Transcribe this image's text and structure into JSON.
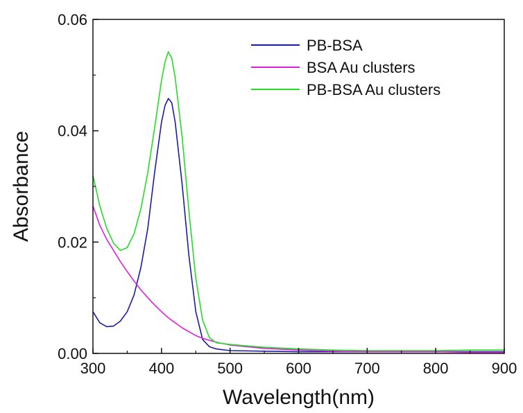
{
  "chart_data": {
    "type": "line",
    "xlabel": "Wavelength(nm)",
    "ylabel": "Absorbance",
    "xlim": [
      300,
      900
    ],
    "ylim": [
      0.0,
      0.06
    ],
    "x_ticks": [
      300,
      400,
      500,
      600,
      700,
      800,
      900
    ],
    "x_tick_labels": [
      "300",
      "400",
      "500",
      "600",
      "700",
      "800",
      "900"
    ],
    "y_ticks": [
      0.0,
      0.02,
      0.04,
      0.06
    ],
    "y_tick_labels": [
      "0.00",
      "0.02",
      "0.04",
      "0.06"
    ],
    "grid": false,
    "legend_position": "top-right",
    "series": [
      {
        "name": "PB-BSA",
        "color": "#1a1aa6",
        "x": [
          300,
          310,
          320,
          330,
          340,
          350,
          360,
          370,
          380,
          390,
          400,
          405,
          410,
          415,
          420,
          430,
          440,
          450,
          460,
          470,
          480,
          500,
          550,
          600,
          650,
          700,
          750,
          800,
          850,
          900
        ],
        "y": [
          0.0075,
          0.0055,
          0.0048,
          0.0049,
          0.0058,
          0.0075,
          0.0105,
          0.0155,
          0.0225,
          0.0325,
          0.0415,
          0.0445,
          0.0458,
          0.045,
          0.0415,
          0.0305,
          0.0175,
          0.0075,
          0.0025,
          0.0012,
          0.0008,
          0.0005,
          0.0004,
          0.0003,
          0.0003,
          0.0003,
          0.0003,
          0.0003,
          0.0003,
          0.0003
        ]
      },
      {
        "name": "BSA Au clusters",
        "color": "#e01ee0",
        "x": [
          300,
          310,
          320,
          330,
          340,
          350,
          360,
          370,
          380,
          390,
          400,
          410,
          420,
          430,
          440,
          450,
          460,
          480,
          500,
          550,
          600,
          650,
          700,
          750,
          800,
          850,
          900
        ],
        "y": [
          0.0265,
          0.023,
          0.0205,
          0.0185,
          0.0165,
          0.0147,
          0.013,
          0.0114,
          0.01,
          0.0087,
          0.0075,
          0.0064,
          0.0055,
          0.0046,
          0.0039,
          0.0032,
          0.0027,
          0.002,
          0.0015,
          0.0009,
          0.0006,
          0.0004,
          0.0003,
          0.0003,
          0.0003,
          0.0002,
          0.0002
        ]
      },
      {
        "name": "PB-BSA Au clusters",
        "color": "#22dd22",
        "x": [
          300,
          310,
          320,
          330,
          340,
          350,
          360,
          370,
          380,
          390,
          400,
          405,
          410,
          415,
          420,
          430,
          440,
          450,
          460,
          470,
          480,
          500,
          520,
          550,
          600,
          650,
          700,
          750,
          800,
          850,
          900
        ],
        "y": [
          0.032,
          0.0265,
          0.0225,
          0.0198,
          0.0185,
          0.019,
          0.0215,
          0.026,
          0.0325,
          0.0405,
          0.049,
          0.0523,
          0.0542,
          0.053,
          0.0495,
          0.039,
          0.0255,
          0.0135,
          0.006,
          0.0028,
          0.0019,
          0.0016,
          0.0014,
          0.0011,
          0.0008,
          0.0006,
          0.0005,
          0.0005,
          0.0005,
          0.0006,
          0.0006
        ]
      }
    ]
  }
}
